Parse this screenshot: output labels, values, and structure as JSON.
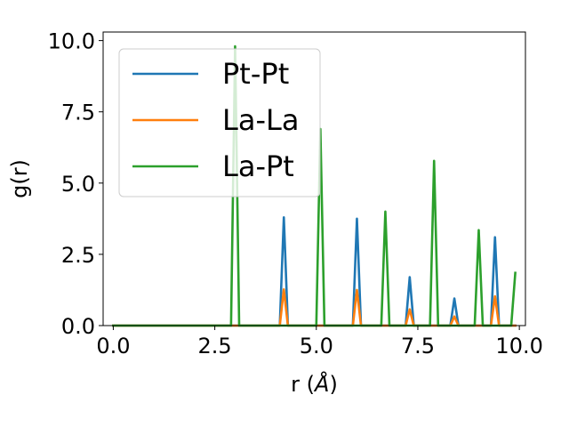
{
  "chart_data": {
    "type": "line",
    "title": "",
    "xlabel": "r (",
    "xlabel_unit": "Å",
    "xlabel_close": ")",
    "ylabel": "g(r)",
    "xlim": [
      -0.25,
      10.15
    ],
    "ylim": [
      0,
      10.3
    ],
    "xticks": [
      0.0,
      2.5,
      5.0,
      7.5,
      10.0
    ],
    "xtick_labels": [
      "0.0",
      "2.5",
      "5.0",
      "7.5",
      "10.0"
    ],
    "yticks": [
      0.0,
      2.5,
      5.0,
      7.5,
      10.0
    ],
    "ytick_labels": [
      "0.0",
      "2.5",
      "5.0",
      "7.5",
      "10.0"
    ],
    "grid": false,
    "legend_position": "top-left",
    "series": [
      {
        "name": "Pt-Pt",
        "color": "#1f77b4",
        "x": [
          0.0,
          4.1,
          4.2,
          4.3,
          5.9,
          6.0,
          6.1,
          7.2,
          7.3,
          7.4,
          8.3,
          8.4,
          8.5,
          9.3,
          9.4,
          9.5,
          9.9
        ],
        "y": [
          0.0,
          0.0,
          3.8,
          0.0,
          0.0,
          3.75,
          0.0,
          0.0,
          1.7,
          0.0,
          0.0,
          0.95,
          0.0,
          0.0,
          3.1,
          0.0,
          0.0
        ]
      },
      {
        "name": "La-La",
        "color": "#ff7f0e",
        "x": [
          0.0,
          4.1,
          4.2,
          4.3,
          5.9,
          6.0,
          6.1,
          7.2,
          7.3,
          7.4,
          8.3,
          8.4,
          8.5,
          9.3,
          9.4,
          9.5,
          9.9
        ],
        "y": [
          0.0,
          0.0,
          1.27,
          0.0,
          0.0,
          1.25,
          0.0,
          0.0,
          0.57,
          0.0,
          0.0,
          0.32,
          0.0,
          0.0,
          1.03,
          0.0,
          0.0
        ]
      },
      {
        "name": "La-Pt",
        "color": "#2ca02c",
        "x": [
          0.0,
          2.9,
          3.0,
          3.1,
          5.0,
          5.1,
          5.2,
          6.6,
          6.7,
          6.8,
          7.8,
          7.9,
          8.0,
          8.9,
          9.0,
          9.1,
          9.8,
          9.9
        ],
        "y": [
          0.0,
          0.0,
          9.8,
          0.0,
          0.0,
          6.9,
          0.0,
          0.0,
          4.0,
          0.0,
          0.0,
          5.78,
          0.0,
          0.0,
          3.35,
          0.0,
          0.0,
          1.85
        ]
      }
    ]
  }
}
